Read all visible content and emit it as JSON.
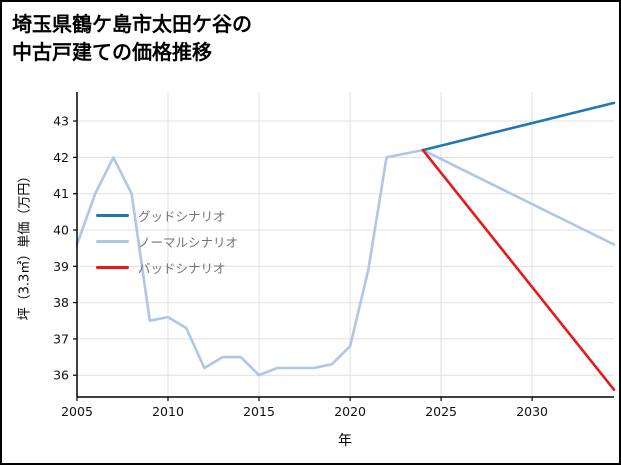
{
  "title": {
    "text": "埼玉県鶴ケ島市太田ケ谷の\n中古戸建ての価格推移"
  },
  "chart_data": {
    "type": "line",
    "title": "埼玉県鶴ケ島市太田ケ谷の中古戸建ての価格推移",
    "xlabel": "年",
    "ylabel": "坪（3.3㎡）単価（万円）",
    "xlim": [
      2005,
      2034.5
    ],
    "ylim": [
      35.4,
      43.8
    ],
    "xticks": [
      2005,
      2010,
      2015,
      2020,
      2025,
      2030
    ],
    "yticks": [
      36,
      37,
      38,
      39,
      40,
      41,
      42,
      43
    ],
    "grid": true,
    "grid_color": "#e0e0e0",
    "axis_color": "#000000",
    "legend_position": "center-left",
    "series": [
      {
        "id": "good",
        "name": "グッドシナリオ",
        "color": "#1f77b4",
        "z": 2,
        "x": [
          2024,
          2034.5
        ],
        "y": [
          42.2,
          43.5
        ]
      },
      {
        "id": "normal",
        "name": "ノーマルシナリオ",
        "color": "#aec7e8",
        "z": 1,
        "x": [
          2005,
          2006,
          2007,
          2008,
          2009,
          2010,
          2011,
          2012,
          2013,
          2014,
          2015,
          2016,
          2017,
          2018,
          2019,
          2020,
          2021,
          2022,
          2023,
          2024,
          2034.5
        ],
        "y": [
          39.6,
          41.0,
          42.0,
          41.0,
          37.5,
          37.6,
          37.3,
          36.2,
          36.5,
          36.5,
          36.0,
          36.2,
          36.2,
          36.2,
          36.3,
          36.8,
          38.9,
          42.0,
          42.1,
          42.2,
          39.6
        ]
      },
      {
        "id": "bad",
        "name": "バッドシナリオ",
        "color": "#e41a1c",
        "z": 3,
        "x": [
          2024,
          2034.5
        ],
        "y": [
          42.2,
          35.6
        ]
      }
    ]
  }
}
